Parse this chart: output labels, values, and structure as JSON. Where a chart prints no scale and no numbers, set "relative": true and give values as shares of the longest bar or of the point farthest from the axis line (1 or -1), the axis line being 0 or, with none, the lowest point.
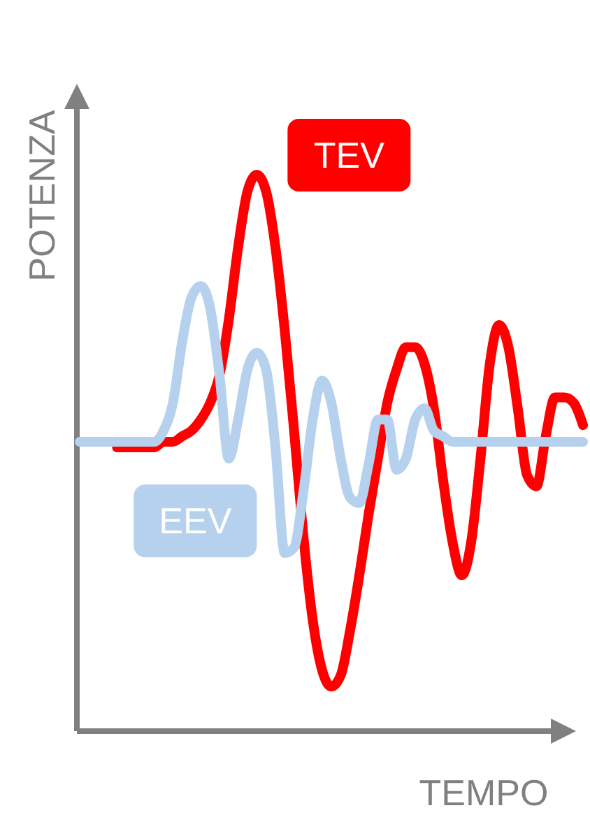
{
  "chart_data": {
    "type": "line",
    "relative": true,
    "xlabel": "TEMPO",
    "ylabel": "POTENZA",
    "line_style": "solid",
    "marker": "none",
    "categories": [
      null,
      null,
      null,
      null,
      null,
      null,
      null,
      null,
      null,
      null,
      null,
      null,
      null,
      null,
      null,
      null,
      null,
      null,
      null,
      null,
      null,
      null,
      null,
      null,
      null,
      null,
      null,
      null,
      null,
      null,
      null,
      null,
      null,
      null,
      null,
      null,
      null,
      null,
      null,
      null,
      null,
      null,
      null,
      null,
      null,
      null,
      null,
      null,
      null,
      null,
      null,
      null,
      null,
      null,
      null
    ],
    "series": [
      {
        "name": "TEV",
        "color": "#ff0000",
        "values": [
          null,
          null,
          null,
          null,
          0.51,
          0.51,
          0.51,
          0.51,
          0.51,
          0.52,
          0.52,
          0.53,
          0.54,
          0.56,
          0.59,
          0.64,
          0.74,
          0.87,
          0.97,
          1,
          0.97,
          0.87,
          0.72,
          0.54,
          0.35,
          0.2,
          0.11,
          0.08,
          0.1,
          0.18,
          0.28,
          0.39,
          0.49,
          0.59,
          0.65,
          0.69,
          0.69,
          0.66,
          0.58,
          0.45,
          0.34,
          0.28,
          0.34,
          0.49,
          0.66,
          0.73,
          0.69,
          0.58,
          0.46,
          0.44,
          0.53,
          0.6,
          0.6,
          0.59,
          0.55
        ]
      },
      {
        "name": "EEV",
        "color": "#b5d1ee",
        "values": [
          0.52,
          0.52,
          0.52,
          0.52,
          0.52,
          0.52,
          0.52,
          0.52,
          0.52,
          0.54,
          0.59,
          0.7,
          0.78,
          0.8,
          0.76,
          0.64,
          0.49,
          0.56,
          0.65,
          0.68,
          0.65,
          0.51,
          0.32,
          0.33,
          0.43,
          0.56,
          0.63,
          0.59,
          0.49,
          0.42,
          0.41,
          0.48,
          0.56,
          0.56,
          0.47,
          0.49,
          0.56,
          0.58,
          0.54,
          0.53,
          0.52,
          0.52,
          0.52,
          0.52,
          0.52,
          0.52,
          0.52,
          0.52,
          0.52,
          0.52,
          0.52,
          0.52,
          0.52,
          0.52,
          0.52
        ]
      }
    ]
  }
}
